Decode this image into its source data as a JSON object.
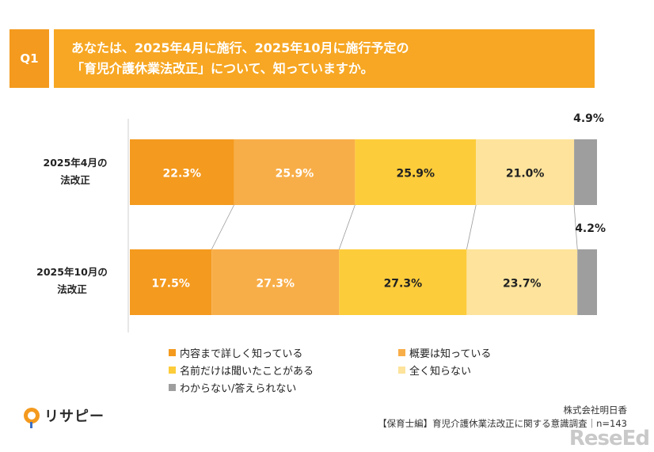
{
  "question": {
    "tag": "Q1",
    "line1": "あなたは、2025年4月に施行、2025年10月に施行予定の",
    "line2": "「育児介護休業法改正」について、知っていますか。"
  },
  "chart_data": {
    "type": "bar",
    "orientation": "horizontal",
    "stacked": "percent",
    "categories": [
      "2025年4月の\n法改正",
      "2025年10月の\n法改正"
    ],
    "series": [
      {
        "name": "内容まで詳しく知っている",
        "values": [
          22.3,
          17.5
        ],
        "color": "#f49a1e"
      },
      {
        "name": "概要は知っている",
        "values": [
          25.9,
          27.3
        ],
        "color": "#f8ae48"
      },
      {
        "name": "名前だけは聞いたことがある",
        "values": [
          25.9,
          27.3
        ],
        "color": "#fdcc3a"
      },
      {
        "name": "全く知らない",
        "values": [
          21.0,
          23.7
        ],
        "color": "#fde39b"
      },
      {
        "name": "わからない/答えられない",
        "values": [
          4.9,
          4.2
        ],
        "color": "#9e9e9e"
      }
    ],
    "data_labels": [
      [
        "22.3%",
        "25.9%",
        "25.9%",
        "21.0%",
        "4.9%"
      ],
      [
        "17.5%",
        "27.3%",
        "27.3%",
        "23.7%",
        "4.2%"
      ]
    ],
    "legend_position": "bottom",
    "xlim": [
      0,
      100
    ]
  },
  "source": {
    "company": "株式会社明日香",
    "survey": "【保育士編】育児介護休業法改正に関する意識調査｜n=143"
  },
  "logo_text": "リサピー",
  "watermark": "ReseEd"
}
